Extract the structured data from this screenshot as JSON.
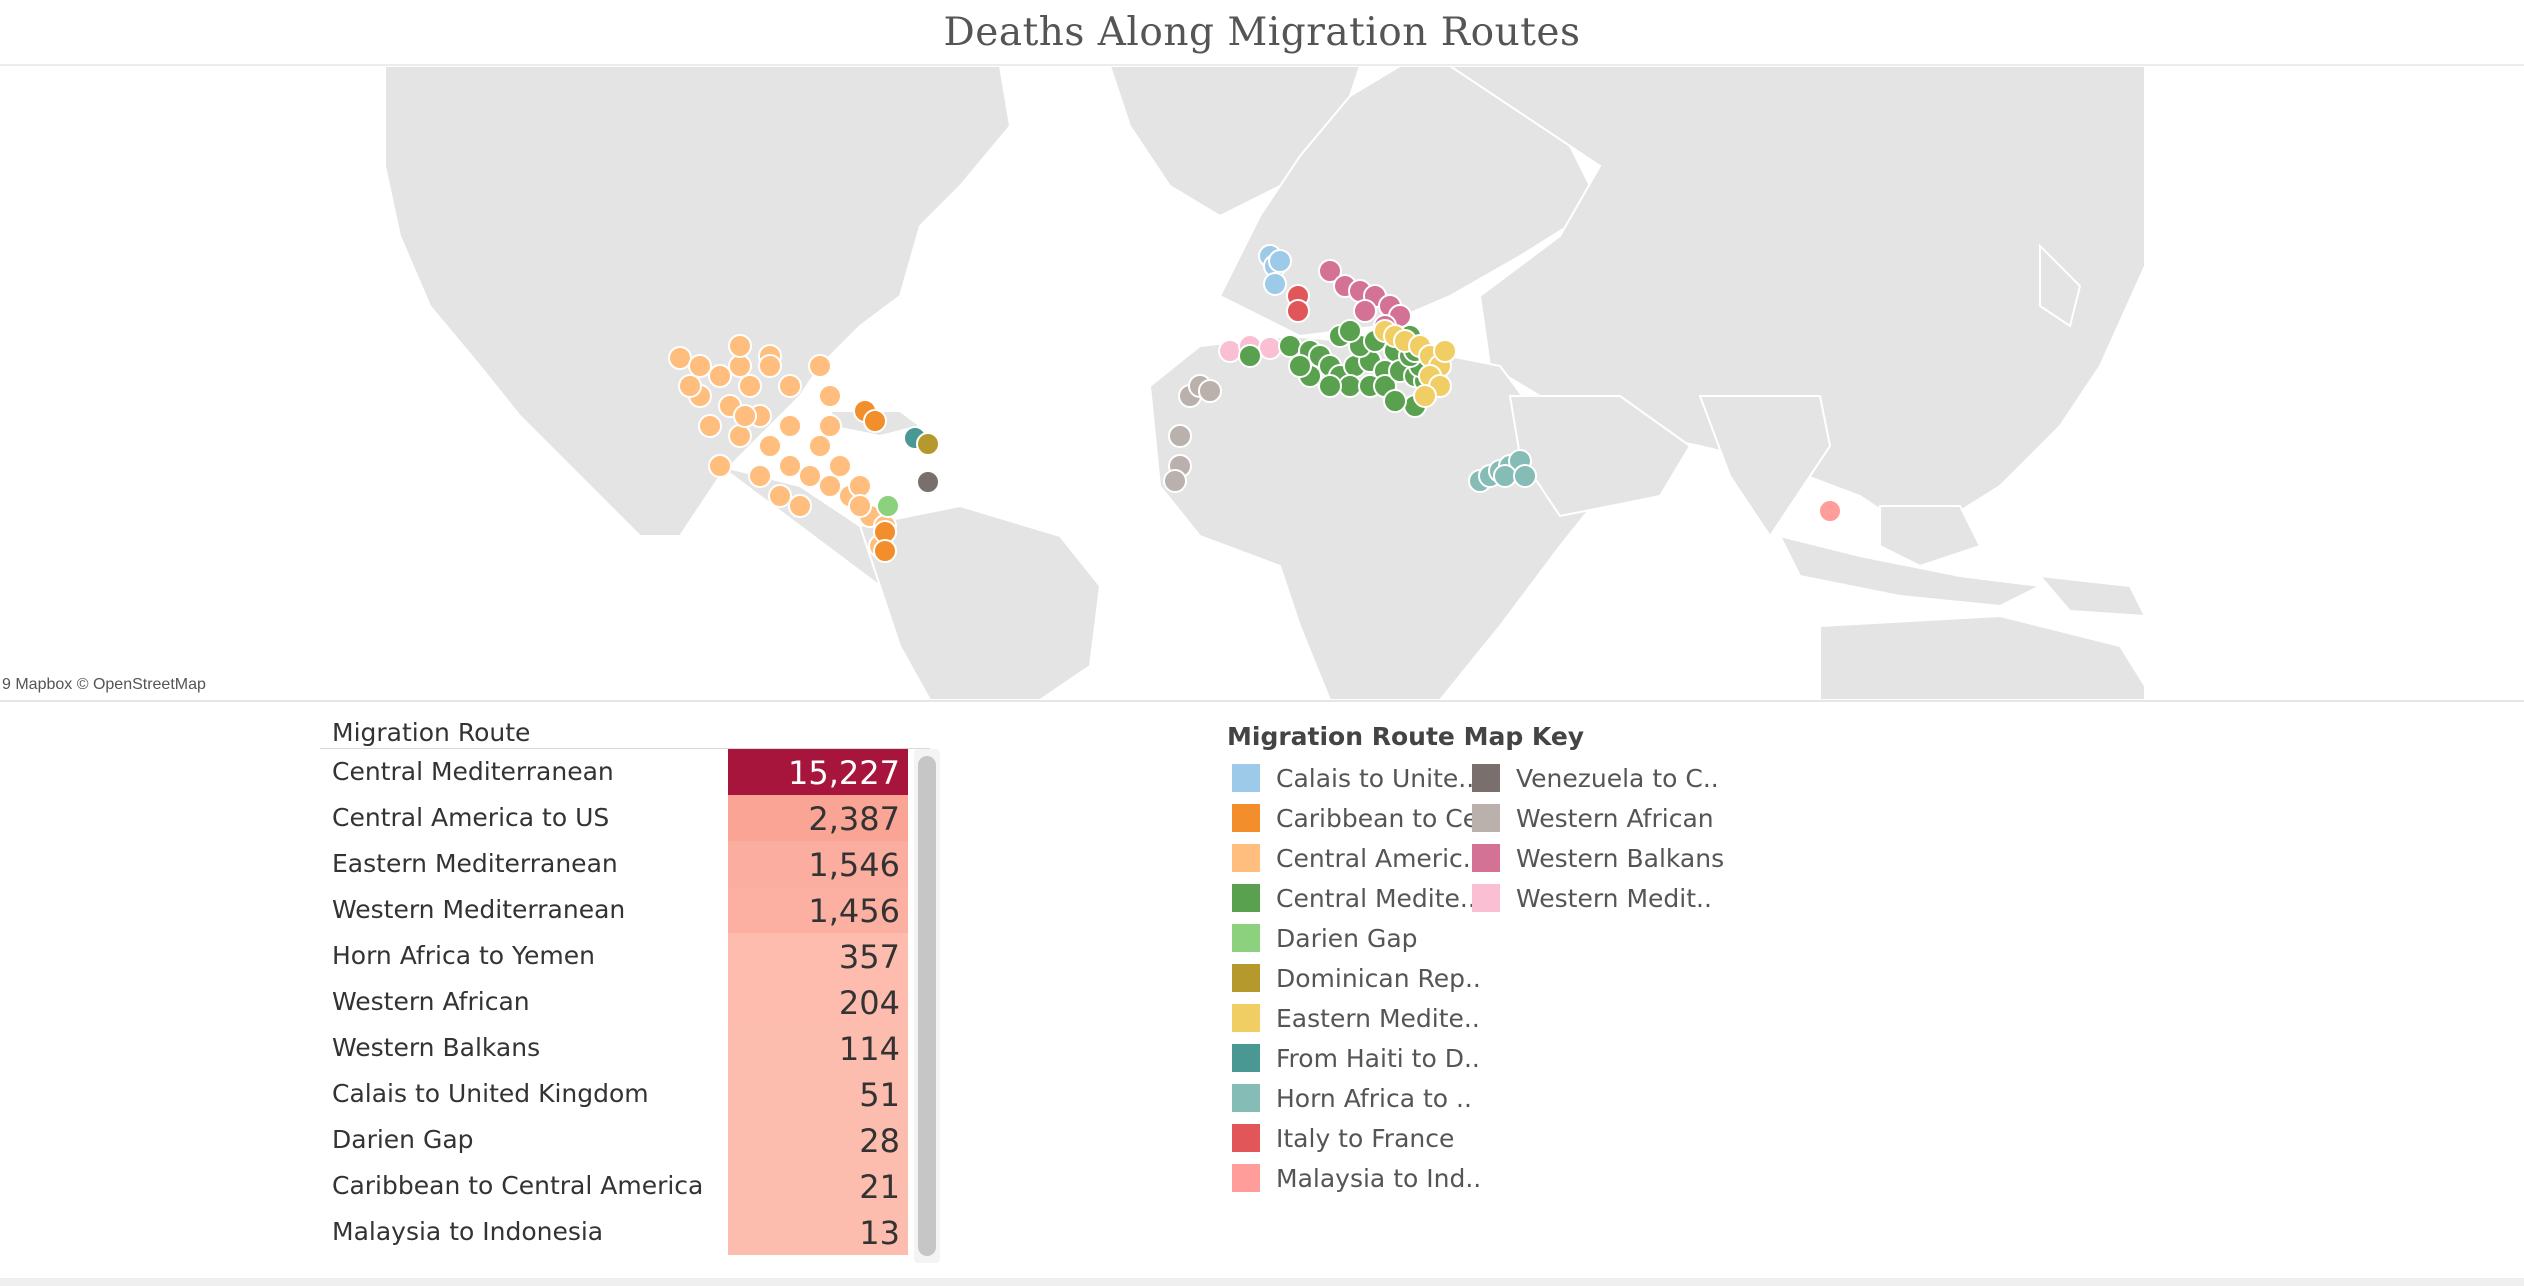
{
  "title": "Deaths Along Migration Routes",
  "map": {
    "attribution": "9 Mapbox © OpenStreetMap",
    "colors": {
      "land": "#e4e4e4",
      "water": "#ffffff"
    }
  },
  "table": {
    "header": "Migration Route",
    "rows": [
      {
        "route": "Central Mediterranean",
        "deaths": "15,227",
        "color": "#a8153c"
      },
      {
        "route": "Central America to US",
        "deaths": "2,387",
        "color": "#f9a494"
      },
      {
        "route": "Eastern Mediterranean",
        "deaths": "1,546",
        "color": "#fbaea0"
      },
      {
        "route": "Western Mediterranean",
        "deaths": "1,456",
        "color": "#fbb0a2"
      },
      {
        "route": "Horn Africa to Yemen",
        "deaths": "357",
        "color": "#fdbcad"
      },
      {
        "route": "Western African",
        "deaths": "204",
        "color": "#fdbcad"
      },
      {
        "route": "Western Balkans",
        "deaths": "114",
        "color": "#fdbdae"
      },
      {
        "route": "Calais to United Kingdom",
        "deaths": "51",
        "color": "#fdbdae"
      },
      {
        "route": "Darien Gap",
        "deaths": "28",
        "color": "#fdbdae"
      },
      {
        "route": "Caribbean to Central America",
        "deaths": "21",
        "color": "#fdbdae"
      },
      {
        "route": "Malaysia to Indonesia",
        "deaths": "13",
        "color": "#fdbdae"
      }
    ]
  },
  "legend": {
    "title": "Migration Route Map Key",
    "items": [
      {
        "label": "Calais to Unite..",
        "color": "#9ecae9"
      },
      {
        "label": "Caribbean to Ce..",
        "color": "#f28e2b"
      },
      {
        "label": "Central Americ..",
        "color": "#ffbe7d"
      },
      {
        "label": "Central Medite..",
        "color": "#59a14f"
      },
      {
        "label": "Darien Gap",
        "color": "#8cd17d"
      },
      {
        "label": "Dominican Rep..",
        "color": "#b6992d"
      },
      {
        "label": "Eastern Medite..",
        "color": "#f1ce63"
      },
      {
        "label": "From Haiti to D..",
        "color": "#499894"
      },
      {
        "label": "Horn Africa to ..",
        "color": "#86bcb6"
      },
      {
        "label": "Italy to France",
        "color": "#e15759"
      },
      {
        "label": "Malaysia to Ind..",
        "color": "#ff9d9a"
      },
      {
        "label": "Venezuela to C..",
        "color": "#79706e"
      },
      {
        "label": "Western African",
        "color": "#bab0ac"
      },
      {
        "label": "Western Balkans",
        "color": "#d37295"
      },
      {
        "label": "Western Medit..",
        "color": "#fabfd2"
      }
    ]
  }
}
